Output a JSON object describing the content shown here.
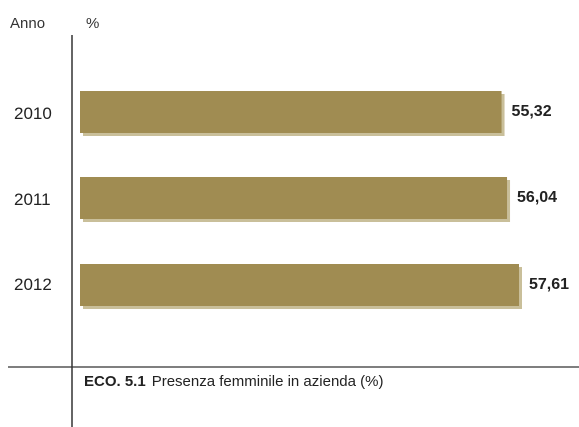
{
  "chart_data": {
    "type": "bar",
    "orientation": "horizontal",
    "categories": [
      "2010",
      "2011",
      "2012"
    ],
    "values": [
      55.32,
      56.04,
      57.61
    ],
    "value_labels": [
      "55,32",
      "56,04",
      "57,61"
    ],
    "xlabel": "%",
    "ylabel": "Anno",
    "xlim": [
      0,
      57.61
    ],
    "grid": false,
    "legend": "none",
    "caption_code": "ECO. 5.1",
    "caption_text": "Presenza femminile in azienda (%)"
  },
  "colors": {
    "bar": "#a08c52",
    "bar_shadow": "#c9bf9a",
    "axis": "#333333",
    "text": "#222222"
  }
}
